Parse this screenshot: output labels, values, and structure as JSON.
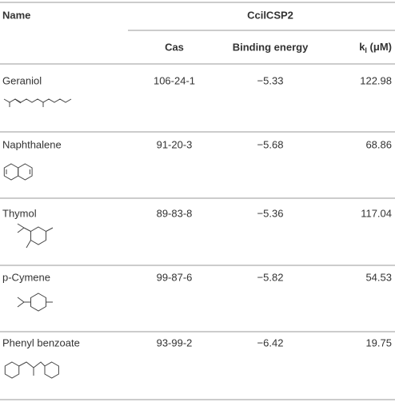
{
  "table": {
    "header": {
      "name": "Name",
      "group": "CcilCSP2",
      "columns": [
        "Cas",
        "Binding energy"
      ],
      "ki": {
        "main": "k",
        "sub": "I",
        "rest": " (μM)"
      }
    },
    "rows": [
      [
        "Geraniol",
        "106-24-1",
        "−5.33",
        "122.98"
      ],
      [
        "Naphthalene",
        "91-20-3",
        "−5.68",
        "68.86"
      ],
      [
        "Thymol",
        "89-83-8",
        "−5.36",
        "117.04"
      ],
      [
        "p-Cymene",
        "99-87-6",
        "−5.82",
        "54.53"
      ],
      [
        "Phenyl benzoate",
        "93-99-2",
        "−6.42",
        "19.75"
      ]
    ]
  }
}
